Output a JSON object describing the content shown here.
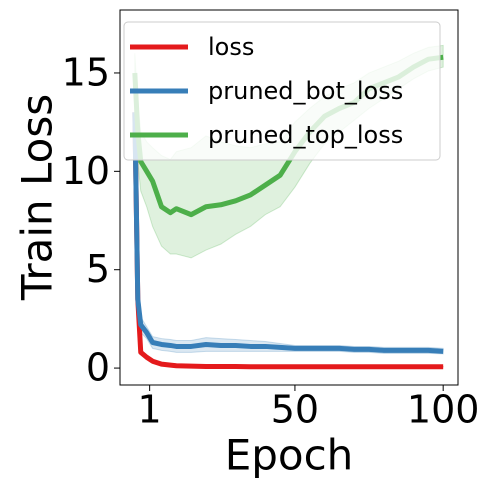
{
  "chart_data": {
    "type": "line",
    "x_label": "Epoch",
    "y_label": "Train Loss",
    "x": [
      -4,
      -3,
      -2,
      0,
      2,
      5,
      8,
      10,
      15,
      20,
      25,
      30,
      35,
      40,
      45,
      50,
      55,
      60,
      65,
      70,
      75,
      80,
      85,
      90,
      95,
      100
    ],
    "series": [
      {
        "name": "loss",
        "color": "#e41a1c",
        "values": [
          13,
          3.5,
          0.8,
          0.55,
          0.35,
          0.2,
          0.15,
          0.12,
          0.1,
          0.08,
          0.08,
          0.08,
          0.07,
          0.07,
          0.07,
          0.07,
          0.07,
          0.07,
          0.07,
          0.07,
          0.07,
          0.07,
          0.07,
          0.07,
          0.07,
          0.07
        ],
        "lower": [
          12,
          3.2,
          0.7,
          0.5,
          0.3,
          0.18,
          0.13,
          0.1,
          0.09,
          0.07,
          0.07,
          0.07,
          0.06,
          0.06,
          0.06,
          0.06,
          0.06,
          0.06,
          0.06,
          0.06,
          0.06,
          0.06,
          0.06,
          0.06,
          0.06,
          0.06
        ],
        "upper": [
          14,
          3.8,
          0.9,
          0.6,
          0.4,
          0.22,
          0.17,
          0.14,
          0.11,
          0.09,
          0.09,
          0.09,
          0.08,
          0.08,
          0.08,
          0.08,
          0.08,
          0.08,
          0.08,
          0.08,
          0.08,
          0.08,
          0.08,
          0.08,
          0.08,
          0.08
        ]
      },
      {
        "name": "pruned_bot_loss",
        "color": "#377eb8",
        "values": [
          13,
          3.5,
          2.2,
          1.8,
          1.3,
          1.2,
          1.15,
          1.1,
          1.1,
          1.2,
          1.15,
          1.15,
          1.1,
          1.1,
          1.05,
          1.0,
          1.0,
          1.0,
          1.0,
          0.95,
          0.95,
          0.9,
          0.9,
          0.9,
          0.9,
          0.85
        ],
        "lower": [
          12,
          3.0,
          1.8,
          1.5,
          1.0,
          0.9,
          0.85,
          0.8,
          0.8,
          0.85,
          0.85,
          0.85,
          0.85,
          0.85,
          0.85,
          0.85,
          0.85,
          0.85,
          0.85,
          0.8,
          0.8,
          0.75,
          0.75,
          0.75,
          0.75,
          0.72
        ],
        "upper": [
          14,
          4.0,
          2.6,
          2.1,
          1.6,
          1.5,
          1.45,
          1.4,
          1.4,
          1.55,
          1.5,
          1.45,
          1.4,
          1.35,
          1.25,
          1.15,
          1.15,
          1.15,
          1.15,
          1.1,
          1.1,
          1.05,
          1.05,
          1.05,
          1.05,
          1.0
        ]
      },
      {
        "name": "pruned_top_loss",
        "color": "#4daf4a",
        "values": [
          15,
          12,
          10.5,
          10,
          9.5,
          8.2,
          7.9,
          8.1,
          7.8,
          8.2,
          8.3,
          8.5,
          8.8,
          9.3,
          9.8,
          11,
          12,
          12.8,
          13.2,
          13.5,
          14.2,
          14.5,
          14.8,
          15.3,
          15.7,
          15.8
        ],
        "lower": [
          14,
          10.5,
          9,
          8.2,
          7.2,
          6.2,
          5.8,
          5.8,
          5.6,
          6.0,
          6.3,
          6.8,
          7.2,
          7.8,
          8.2,
          9.2,
          10.4,
          11.4,
          12.0,
          12.6,
          13.2,
          13.7,
          14.2,
          14.7,
          15.1,
          15.3
        ],
        "upper": [
          16,
          13.5,
          12,
          11.5,
          11.2,
          10.8,
          10.6,
          11,
          11.2,
          11.8,
          11.5,
          11.3,
          11.2,
          11.4,
          11.5,
          12.5,
          13.2,
          13.8,
          14.2,
          14.5,
          15.0,
          15.3,
          15.6,
          16.0,
          16.3,
          16.4
        ]
      }
    ],
    "xlim": [
      -9,
      105
    ],
    "ylim": [
      -0.86,
      18.2
    ],
    "xticks": [
      1,
      50,
      100
    ],
    "yticks": [
      0,
      5,
      10,
      15
    ],
    "legend": "upper left"
  }
}
